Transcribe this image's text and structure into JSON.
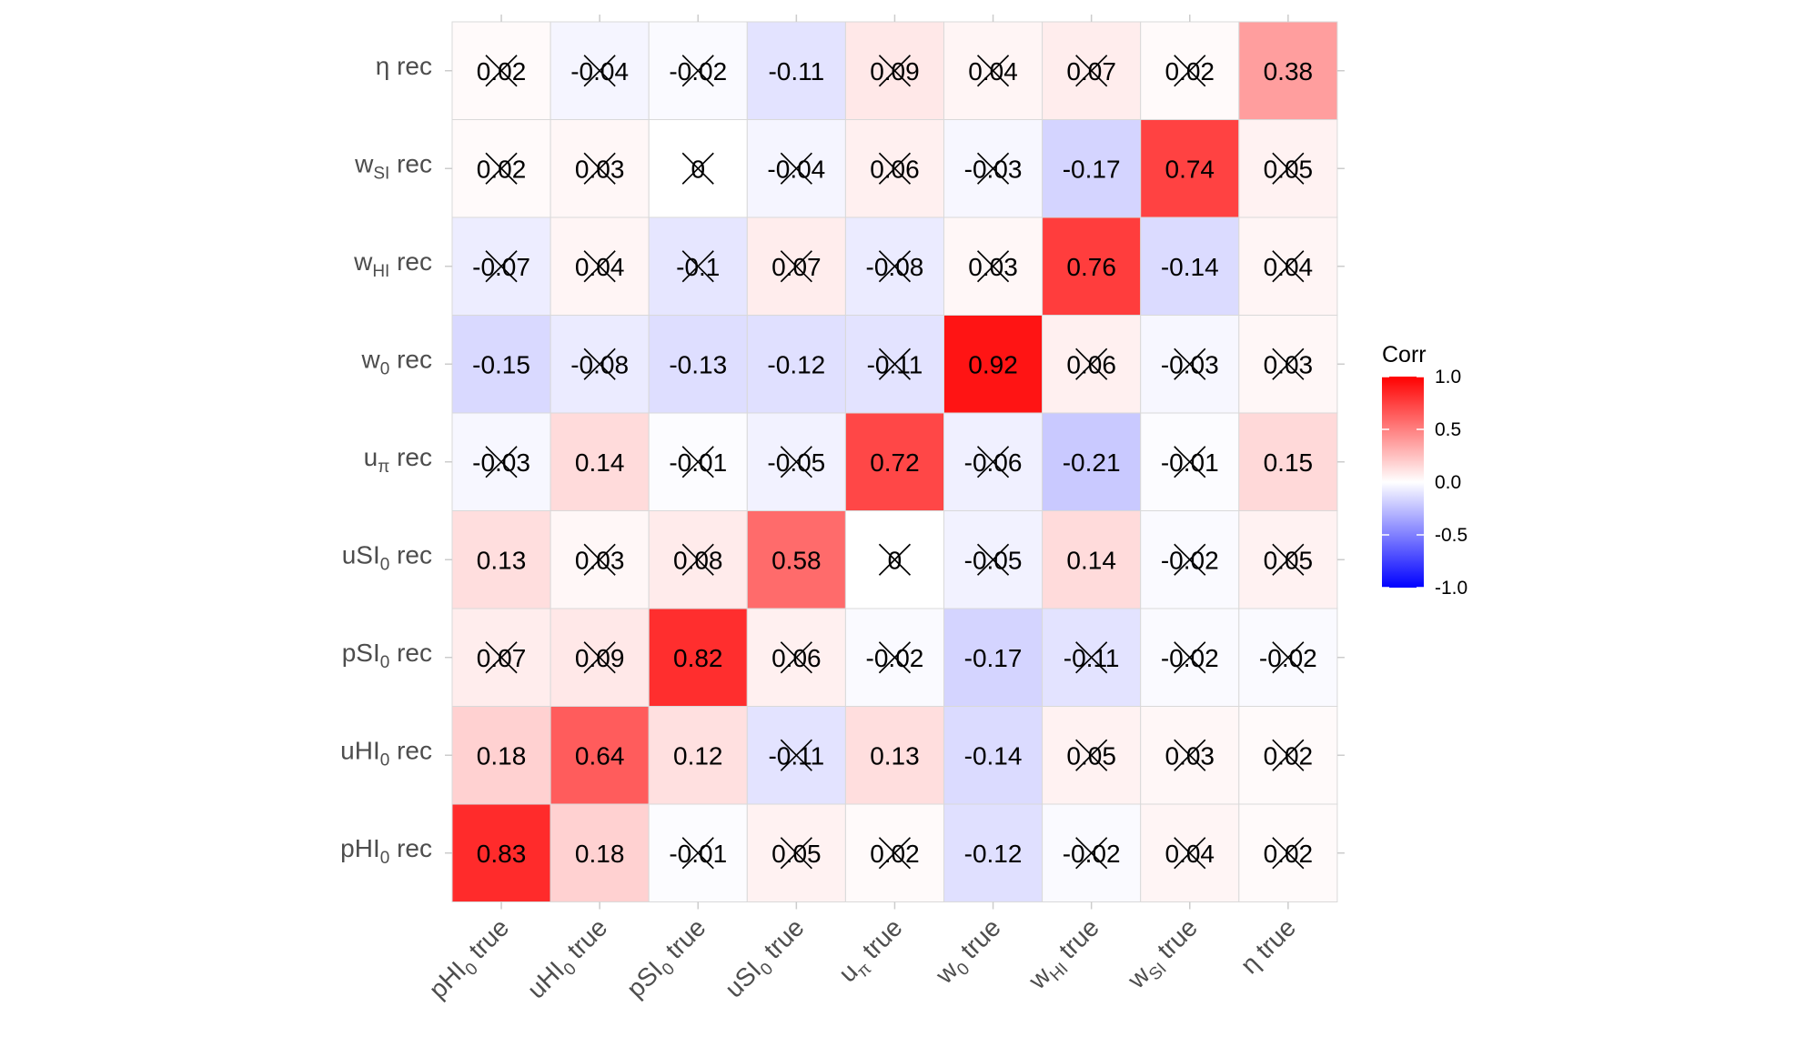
{
  "chart_data": {
    "type": "heatmap",
    "title": "",
    "x_labels": [
      {
        "base": "pHI",
        "sub": "0",
        "suffix": " true"
      },
      {
        "base": "uHI",
        "sub": "0",
        "suffix": " true"
      },
      {
        "base": "pSI",
        "sub": "0",
        "suffix": " true"
      },
      {
        "base": "uSI",
        "sub": "0",
        "suffix": " true"
      },
      {
        "base": "u",
        "sub": "π",
        "suffix": " true"
      },
      {
        "base": "w",
        "sub": "0",
        "suffix": " true"
      },
      {
        "base": "w",
        "sub": "HI",
        "suffix": " true"
      },
      {
        "base": "w",
        "sub": "SI",
        "suffix": " true"
      },
      {
        "base": "η",
        "sub": "",
        "suffix": " true"
      }
    ],
    "y_labels": [
      {
        "base": "η",
        "sub": "",
        "suffix": " rec"
      },
      {
        "base": "w",
        "sub": "SI",
        "suffix": " rec"
      },
      {
        "base": "w",
        "sub": "HI",
        "suffix": " rec"
      },
      {
        "base": "w",
        "sub": "0",
        "suffix": " rec"
      },
      {
        "base": "u",
        "sub": "π",
        "suffix": " rec"
      },
      {
        "base": "uSI",
        "sub": "0",
        "suffix": " rec"
      },
      {
        "base": "pSI",
        "sub": "0",
        "suffix": " rec"
      },
      {
        "base": "uHI",
        "sub": "0",
        "suffix": " rec"
      },
      {
        "base": "pHI",
        "sub": "0",
        "suffix": " rec"
      }
    ],
    "values": [
      [
        0.02,
        -0.04,
        -0.02,
        -0.11,
        0.09,
        0.04,
        0.07,
        0.02,
        0.38
      ],
      [
        0.02,
        0.03,
        0,
        -0.04,
        0.06,
        -0.03,
        -0.17,
        0.74,
        0.05
      ],
      [
        -0.07,
        0.04,
        -0.1,
        0.07,
        -0.08,
        0.03,
        0.76,
        -0.14,
        0.04
      ],
      [
        -0.15,
        -0.08,
        -0.13,
        -0.12,
        -0.11,
        0.92,
        0.06,
        -0.03,
        0.03
      ],
      [
        -0.03,
        0.14,
        -0.01,
        -0.05,
        0.72,
        -0.06,
        -0.21,
        -0.01,
        0.15
      ],
      [
        0.13,
        0.03,
        0.08,
        0.58,
        0,
        -0.05,
        0.14,
        -0.02,
        0.05
      ],
      [
        0.07,
        0.09,
        0.82,
        0.06,
        -0.02,
        -0.17,
        -0.11,
        -0.02,
        -0.02
      ],
      [
        0.18,
        0.64,
        0.12,
        -0.11,
        0.13,
        -0.14,
        0.05,
        0.03,
        0.02
      ],
      [
        0.83,
        0.18,
        -0.01,
        0.05,
        0.02,
        -0.12,
        -0.02,
        0.04,
        0.02
      ]
    ],
    "labels": [
      [
        "0.02",
        "-0.04",
        "-0.02",
        "-0.11",
        "0.09",
        "0.04",
        "0.07",
        "0.02",
        "0.38"
      ],
      [
        "0.02",
        "0.03",
        "0",
        "-0.04",
        "0.06",
        "-0.03",
        "-0.17",
        "0.74",
        "0.05"
      ],
      [
        "-0.07",
        "0.04",
        "-0.1",
        "0.07",
        "-0.08",
        "0.03",
        "0.76",
        "-0.14",
        "0.04"
      ],
      [
        "-0.15",
        "-0.08",
        "-0.13",
        "-0.12",
        "-0.11",
        "0.92",
        "0.06",
        "-0.03",
        "0.03"
      ],
      [
        "-0.03",
        "0.14",
        "-0.01",
        "-0.05",
        "0.72",
        "-0.06",
        "-0.21",
        "-0.01",
        "0.15"
      ],
      [
        "0.13",
        "0.03",
        "0.08",
        "0.58",
        "0",
        "-0.05",
        "0.14",
        "-0.02",
        "0.05"
      ],
      [
        "0.07",
        "0.09",
        "0.82",
        "0.06",
        "-0.02",
        "-0.17",
        "-0.11",
        "-0.02",
        "-0.02"
      ],
      [
        "0.18",
        "0.64",
        "0.12",
        "-0.11",
        "0.13",
        "-0.14",
        "0.05",
        "0.03",
        "0.02"
      ],
      [
        "0.83",
        "0.18",
        "-0.01",
        "0.05",
        "0.02",
        "-0.12",
        "-0.02",
        "0.04",
        "0.02"
      ]
    ],
    "insignificant": [
      [
        true,
        true,
        true,
        false,
        true,
        true,
        true,
        true,
        false
      ],
      [
        true,
        true,
        true,
        true,
        true,
        true,
        false,
        false,
        true
      ],
      [
        true,
        true,
        true,
        true,
        true,
        true,
        false,
        false,
        true
      ],
      [
        false,
        true,
        false,
        false,
        true,
        false,
        true,
        true,
        true
      ],
      [
        true,
        false,
        true,
        true,
        false,
        true,
        false,
        true,
        false
      ],
      [
        false,
        true,
        true,
        false,
        true,
        true,
        false,
        true,
        true
      ],
      [
        true,
        true,
        false,
        true,
        true,
        false,
        true,
        true,
        true
      ],
      [
        false,
        false,
        false,
        true,
        false,
        false,
        true,
        true,
        true
      ],
      [
        false,
        false,
        true,
        true,
        true,
        false,
        true,
        true,
        true
      ]
    ],
    "legend": {
      "title": "Corr",
      "ticks": [
        1.0,
        0.5,
        0.0,
        -0.5,
        -1.0
      ],
      "tick_labels": [
        "1.0",
        "0.5",
        "0.0",
        "-0.5",
        "-1.0"
      ],
      "low_color": "#0000FF",
      "mid_color": "#FFFFFF",
      "high_color": "#FF0000",
      "limits": [
        -1,
        1
      ],
      "position": "right"
    }
  },
  "colors": {
    "cell_border": "#d9d9d9",
    "tick_color": "#cccccc",
    "text": "#000000",
    "axis_text": "#4d4d4d"
  }
}
